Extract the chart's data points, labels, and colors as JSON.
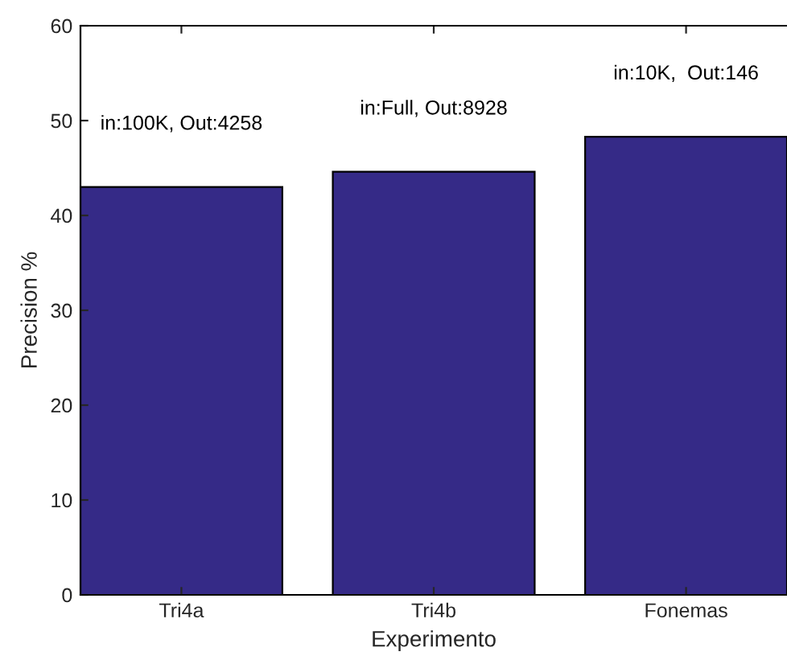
{
  "chart_data": {
    "type": "bar",
    "xlabel": "Experimento",
    "ylabel": "Precision %",
    "categories": [
      "Tri4a",
      "Tri4b",
      "Fonemas"
    ],
    "values": [
      43.0,
      44.6,
      48.3
    ],
    "color": "#352a87",
    "ylim": [
      0,
      60
    ],
    "yticks": [
      0,
      10,
      20,
      30,
      40,
      50,
      60
    ],
    "grid": false,
    "annotations": [
      "in:100K, Out:4258",
      "in:Full, Out:8928",
      "in:10K,  Out:146"
    ]
  }
}
